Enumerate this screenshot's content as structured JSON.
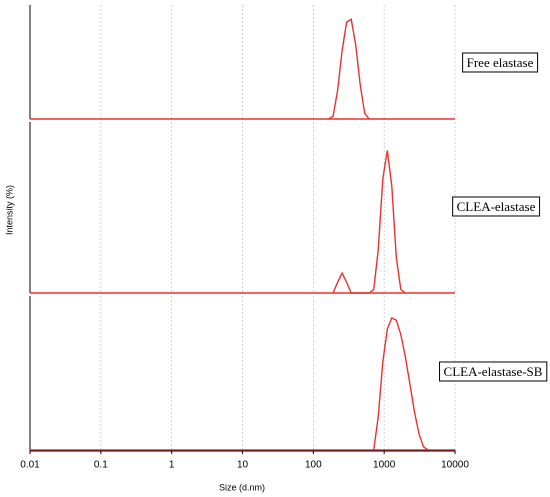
{
  "chart_data": [
    {
      "type": "line",
      "xscale": "log",
      "xlim": [
        0.01,
        10000
      ],
      "xticks": [
        0.01,
        0.1,
        1,
        10,
        100,
        1000,
        10000
      ],
      "ylim": [
        0,
        20
      ],
      "grid": true,
      "color": "#e8322e",
      "annotation": "Free elastase",
      "x": [
        164,
        190,
        220,
        255,
        295,
        342,
        396,
        459,
        531,
        615
      ],
      "values": [
        0,
        0.5,
        5,
        12,
        17,
        17.5,
        13,
        6,
        1,
        0
      ]
    },
    {
      "type": "line",
      "xscale": "log",
      "xlim": [
        0.01,
        10000
      ],
      "xticks": [
        0.01,
        0.1,
        1,
        10,
        100,
        1000,
        10000
      ],
      "ylim": [
        0,
        24
      ],
      "grid": true,
      "color": "#e8322e",
      "annotation": "CLEA-elastase",
      "y_label": "Intensity (%)",
      "x": [
        190,
        220,
        255,
        295,
        342,
        396,
        459,
        531,
        615,
        712,
        825,
        955,
        1106,
        1281,
        1484,
        1718,
        1990
      ],
      "values": [
        0,
        1.5,
        2.8,
        1.5,
        0,
        0,
        0,
        0,
        0,
        0.5,
        6,
        16,
        20,
        15,
        5,
        0.5,
        0
      ]
    },
    {
      "type": "line",
      "xscale": "log",
      "xlim": [
        0.01,
        10000
      ],
      "xticks": [
        0.01,
        0.1,
        1,
        10,
        100,
        1000,
        10000
      ],
      "ylim": [
        0,
        14
      ],
      "grid": true,
      "color": "#e8322e",
      "annotation": "CLEA-elastase-SB",
      "x_label": "Size (d.nm)",
      "x": [
        712,
        825,
        955,
        1106,
        1281,
        1484,
        1718,
        1990,
        2305,
        2669,
        3091,
        3580,
        4145
      ],
      "values": [
        0,
        3,
        8,
        11,
        12,
        11.8,
        10.5,
        8.5,
        6,
        3.5,
        1.5,
        0.3,
        0
      ]
    }
  ]
}
